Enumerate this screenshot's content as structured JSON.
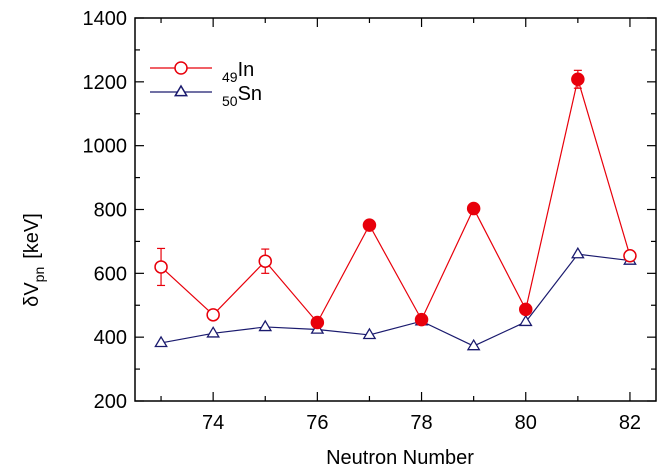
{
  "chart_data": {
    "type": "line",
    "xlabel": "Neutron Number",
    "ylabel": {
      "main": "δV",
      "sub": "pn",
      "unit": "[keV]"
    },
    "xlim": [
      72.5,
      82.5
    ],
    "ylim": [
      200,
      1400
    ],
    "x_ticks": [
      74,
      76,
      78,
      80,
      82
    ],
    "y_ticks": [
      200,
      400,
      600,
      800,
      1000,
      1200,
      1400
    ],
    "legend_position": "top-left",
    "series": [
      {
        "name_sub": "49",
        "name_main": "In",
        "color": "#e8000b",
        "marker": "circle",
        "points": [
          {
            "x": 73,
            "y": 620,
            "filled": false,
            "err": 58
          },
          {
            "x": 74,
            "y": 470,
            "filled": false,
            "err": 0
          },
          {
            "x": 75,
            "y": 638,
            "filled": false,
            "err": 38
          },
          {
            "x": 76,
            "y": 446,
            "filled": true,
            "err": 0
          },
          {
            "x": 77,
            "y": 751,
            "filled": true,
            "err": 0
          },
          {
            "x": 78,
            "y": 455,
            "filled": true,
            "err": 0
          },
          {
            "x": 79,
            "y": 803,
            "filled": true,
            "err": 0
          },
          {
            "x": 80,
            "y": 487,
            "filled": true,
            "err": 0
          },
          {
            "x": 81,
            "y": 1208,
            "filled": true,
            "err": 28
          },
          {
            "x": 82,
            "y": 655,
            "filled": false,
            "err": 0
          }
        ]
      },
      {
        "name_sub": "50",
        "name_main": "Sn",
        "color": "#1a1a6e",
        "marker": "triangle",
        "points": [
          {
            "x": 73,
            "y": 382,
            "filled": false,
            "err": 0
          },
          {
            "x": 74,
            "y": 412,
            "filled": false,
            "err": 0
          },
          {
            "x": 75,
            "y": 432,
            "filled": false,
            "err": 0
          },
          {
            "x": 76,
            "y": 424,
            "filled": false,
            "err": 0
          },
          {
            "x": 77,
            "y": 407,
            "filled": false,
            "err": 0
          },
          {
            "x": 78,
            "y": 450,
            "filled": false,
            "err": 0
          },
          {
            "x": 79,
            "y": 372,
            "filled": false,
            "err": 0
          },
          {
            "x": 80,
            "y": 448,
            "filled": false,
            "err": 0
          },
          {
            "x": 81,
            "y": 660,
            "filled": false,
            "err": 0
          },
          {
            "x": 82,
            "y": 640,
            "filled": false,
            "err": 0
          }
        ]
      }
    ]
  }
}
